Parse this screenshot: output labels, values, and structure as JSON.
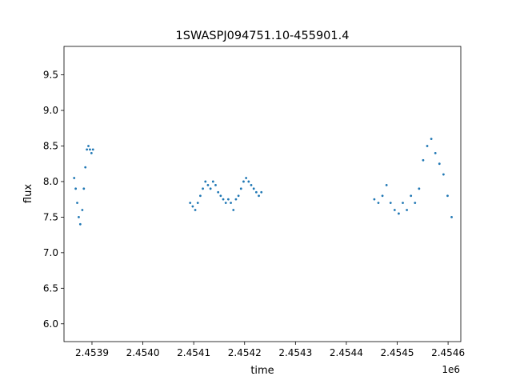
{
  "chart_data": {
    "type": "scatter",
    "title": "1SWASPJ094751.10-455901.4",
    "xlabel": "time",
    "ylabel": "flux",
    "x_offset_label": "1e6",
    "xlim": [
      2453845,
      2454625
    ],
    "ylim": [
      5.75,
      9.9
    ],
    "x_ticks": [
      2453900,
      2454000,
      2454100,
      2454200,
      2454300,
      2454400,
      2454500,
      2454600
    ],
    "x_tick_labels": [
      "2.4539",
      "2.4540",
      "2.4541",
      "2.4542",
      "2.4543",
      "2.4544",
      "2.4545",
      "2.4546"
    ],
    "y_ticks": [
      6.0,
      6.5,
      7.0,
      7.5,
      8.0,
      8.5,
      9.0,
      9.5
    ],
    "y_tick_labels": [
      "6.0",
      "6.5",
      "7.0",
      "7.5",
      "8.0",
      "8.5",
      "9.0",
      "9.5"
    ],
    "grid": false,
    "marker_color": "#1f77b4",
    "series": [
      {
        "x": [
          2453865,
          2453868,
          2453871,
          2453874,
          2453877,
          2453881,
          2453884,
          2453887,
          2453890,
          2453893,
          2453896,
          2453899,
          2453902,
          2454093,
          2454098,
          2454103,
          2454108,
          2454113,
          2454118,
          2454123,
          2454128,
          2454133,
          2454138,
          2454143,
          2454148,
          2454153,
          2454158,
          2454163,
          2454168,
          2454173,
          2454178,
          2454183,
          2454188,
          2454193,
          2454198,
          2454203,
          2454208,
          2454213,
          2454218,
          2454223,
          2454228,
          2454233,
          2454455,
          2454463,
          2454471,
          2454479,
          2454487,
          2454495,
          2454503,
          2454511,
          2454519,
          2454527,
          2454535,
          2454543,
          2454551,
          2454559,
          2454567,
          2454575,
          2454583,
          2454591,
          2454599,
          2454607
        ],
        "y": [
          8.05,
          7.9,
          7.7,
          7.5,
          7.4,
          7.6,
          7.9,
          8.2,
          8.45,
          8.5,
          8.45,
          8.4,
          8.45,
          7.7,
          7.65,
          7.6,
          7.7,
          7.8,
          7.9,
          8.0,
          7.95,
          7.9,
          8.0,
          7.95,
          7.85,
          7.8,
          7.75,
          7.7,
          7.75,
          7.7,
          7.6,
          7.75,
          7.8,
          7.9,
          8.0,
          8.05,
          8.0,
          7.95,
          7.9,
          7.85,
          7.8,
          7.85,
          7.75,
          7.7,
          7.8,
          7.95,
          7.7,
          7.6,
          7.55,
          7.7,
          7.6,
          7.8,
          7.7,
          7.9,
          8.3,
          8.5,
          8.6,
          8.4,
          8.25,
          8.1,
          7.8,
          7.5
        ]
      }
    ]
  }
}
